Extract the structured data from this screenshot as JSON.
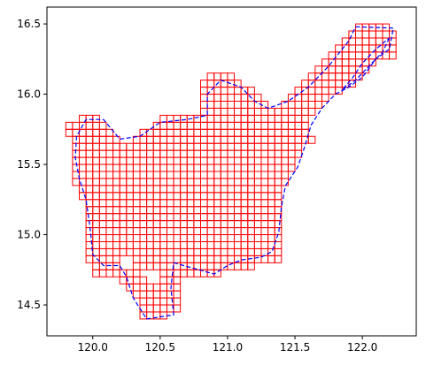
{
  "chart_data": {
    "type": "map",
    "title": "",
    "xlabel": "",
    "ylabel": "",
    "xlim": [
      119.66,
      122.4
    ],
    "ylim": [
      14.28,
      16.62
    ],
    "grid": false,
    "x_ticks": [
      120.0,
      120.5,
      121.0,
      121.5,
      122.0
    ],
    "y_ticks": [
      14.5,
      15.0,
      15.5,
      16.0,
      16.5
    ],
    "x_tick_labels": [
      "120.0",
      "120.5",
      "121.0",
      "121.5",
      "122.0"
    ],
    "y_tick_labels": [
      "14.5",
      "15.0",
      "15.5",
      "16.0",
      "16.5"
    ],
    "cell_size_deg": 0.05,
    "colors": {
      "grid_cells": "#ff0000",
      "boundary": "#0000ff"
    },
    "cell_rows": [
      {
        "lat": 16.475,
        "spans": [
          [
            121.95,
            122.2
          ]
        ]
      },
      {
        "lat": 16.425,
        "spans": [
          [
            121.9,
            122.25
          ]
        ]
      },
      {
        "lat": 16.375,
        "spans": [
          [
            121.85,
            122.25
          ]
        ]
      },
      {
        "lat": 16.325,
        "spans": [
          [
            121.8,
            122.25
          ]
        ]
      },
      {
        "lat": 16.275,
        "spans": [
          [
            121.75,
            122.25
          ]
        ]
      },
      {
        "lat": 16.225,
        "spans": [
          [
            121.7,
            122.1
          ]
        ]
      },
      {
        "lat": 16.175,
        "spans": [
          [
            121.65,
            122.05
          ]
        ]
      },
      {
        "lat": 16.125,
        "spans": [
          [
            120.85,
            121.05
          ],
          [
            121.6,
            122.0
          ]
        ]
      },
      {
        "lat": 16.075,
        "spans": [
          [
            120.8,
            121.1
          ],
          [
            121.55,
            121.95
          ]
        ]
      },
      {
        "lat": 16.025,
        "spans": [
          [
            120.8,
            121.2
          ],
          [
            121.5,
            121.85
          ]
        ]
      },
      {
        "lat": 15.975,
        "spans": [
          [
            120.8,
            121.25
          ],
          [
            121.45,
            121.75
          ]
        ]
      },
      {
        "lat": 15.925,
        "spans": [
          [
            120.8,
            121.3
          ],
          [
            121.4,
            121.7
          ]
        ]
      },
      {
        "lat": 15.875,
        "spans": [
          [
            120.8,
            121.65
          ]
        ]
      },
      {
        "lat": 15.825,
        "spans": [
          [
            119.9,
            120.05
          ],
          [
            120.5,
            121.6
          ]
        ]
      },
      {
        "lat": 15.775,
        "spans": [
          [
            119.8,
            120.1
          ],
          [
            120.45,
            121.6
          ]
        ]
      },
      {
        "lat": 15.725,
        "spans": [
          [
            119.8,
            120.15
          ],
          [
            120.35,
            121.6
          ]
        ]
      },
      {
        "lat": 15.675,
        "spans": [
          [
            119.85,
            120.2
          ],
          [
            120.3,
            121.65
          ]
        ]
      },
      {
        "lat": 15.625,
        "spans": [
          [
            119.85,
            120.3
          ],
          [
            120.3,
            121.55
          ]
        ]
      },
      {
        "lat": 15.575,
        "spans": [
          [
            119.85,
            121.55
          ]
        ]
      },
      {
        "lat": 15.525,
        "spans": [
          [
            119.85,
            121.5
          ]
        ]
      },
      {
        "lat": 15.475,
        "spans": [
          [
            119.85,
            121.5
          ]
        ]
      },
      {
        "lat": 15.425,
        "spans": [
          [
            119.85,
            121.45
          ]
        ]
      },
      {
        "lat": 15.375,
        "spans": [
          [
            119.85,
            121.45
          ]
        ]
      },
      {
        "lat": 15.325,
        "spans": [
          [
            119.9,
            121.4
          ]
        ]
      },
      {
        "lat": 15.275,
        "spans": [
          [
            119.9,
            121.4
          ]
        ]
      },
      {
        "lat": 15.225,
        "spans": [
          [
            119.95,
            121.4
          ]
        ]
      },
      {
        "lat": 15.175,
        "spans": [
          [
            119.95,
            121.4
          ]
        ]
      },
      {
        "lat": 15.125,
        "spans": [
          [
            119.95,
            121.4
          ]
        ]
      },
      {
        "lat": 15.075,
        "spans": [
          [
            119.95,
            121.4
          ]
        ]
      },
      {
        "lat": 15.025,
        "spans": [
          [
            119.95,
            121.4
          ]
        ]
      },
      {
        "lat": 14.975,
        "spans": [
          [
            119.95,
            121.4
          ]
        ]
      },
      {
        "lat": 14.925,
        "spans": [
          [
            119.95,
            121.4
          ]
        ]
      },
      {
        "lat": 14.875,
        "spans": [
          [
            119.95,
            121.4
          ]
        ]
      },
      {
        "lat": 14.825,
        "spans": [
          [
            119.95,
            120.2
          ],
          [
            120.3,
            121.4
          ]
        ]
      },
      {
        "lat": 14.775,
        "spans": [
          [
            120.0,
            120.2
          ],
          [
            120.3,
            121.2
          ]
        ]
      },
      {
        "lat": 14.725,
        "spans": [
          [
            120.0,
            120.35
          ],
          [
            120.5,
            120.95
          ]
        ]
      },
      {
        "lat": 14.675,
        "spans": [
          [
            120.2,
            120.4
          ],
          [
            120.5,
            120.65
          ]
        ]
      },
      {
        "lat": 14.625,
        "spans": [
          [
            120.25,
            120.65
          ]
        ]
      },
      {
        "lat": 14.575,
        "spans": [
          [
            120.3,
            120.65
          ]
        ]
      },
      {
        "lat": 14.525,
        "spans": [
          [
            120.35,
            120.65
          ]
        ]
      },
      {
        "lat": 14.475,
        "spans": [
          [
            120.35,
            120.65
          ]
        ]
      },
      {
        "lat": 14.425,
        "spans": [
          [
            120.35,
            120.55
          ]
        ]
      }
    ],
    "boundary_outline": [
      [
        121.95,
        16.48
      ],
      [
        122.23,
        16.47
      ],
      [
        122.2,
        16.32
      ],
      [
        122.1,
        16.25
      ],
      [
        122.0,
        16.12
      ],
      [
        121.9,
        16.05
      ],
      [
        121.8,
        16.0
      ],
      [
        121.7,
        15.9
      ],
      [
        121.62,
        15.78
      ],
      [
        121.57,
        15.62
      ],
      [
        121.52,
        15.48
      ],
      [
        121.43,
        15.35
      ],
      [
        121.4,
        15.2
      ],
      [
        121.38,
        15.02
      ],
      [
        121.33,
        14.88
      ],
      [
        121.25,
        14.84
      ],
      [
        121.1,
        14.82
      ],
      [
        121.0,
        14.78
      ],
      [
        120.9,
        14.72
      ],
      [
        120.75,
        14.76
      ],
      [
        120.6,
        14.8
      ],
      [
        120.58,
        14.62
      ],
      [
        120.6,
        14.43
      ],
      [
        120.4,
        14.4
      ],
      [
        120.3,
        14.55
      ],
      [
        120.25,
        14.7
      ],
      [
        120.2,
        14.78
      ],
      [
        120.08,
        14.78
      ],
      [
        120.0,
        14.86
      ],
      [
        119.98,
        15.05
      ],
      [
        119.95,
        15.25
      ],
      [
        119.9,
        15.4
      ],
      [
        119.87,
        15.55
      ],
      [
        119.88,
        15.7
      ],
      [
        119.95,
        15.82
      ],
      [
        120.08,
        15.82
      ],
      [
        120.2,
        15.68
      ],
      [
        120.35,
        15.7
      ],
      [
        120.5,
        15.8
      ],
      [
        120.7,
        15.82
      ],
      [
        120.85,
        15.85
      ],
      [
        120.85,
        16.0
      ],
      [
        120.95,
        16.1
      ],
      [
        121.1,
        16.05
      ],
      [
        121.2,
        15.95
      ],
      [
        121.3,
        15.9
      ],
      [
        121.45,
        15.95
      ],
      [
        121.6,
        16.05
      ],
      [
        121.75,
        16.2
      ],
      [
        121.9,
        16.38
      ],
      [
        121.95,
        16.48
      ]
    ],
    "boundary_secondary": [
      [
        122.2,
        16.4
      ],
      [
        122.15,
        16.3
      ],
      [
        122.05,
        16.2
      ],
      [
        121.95,
        16.1
      ],
      [
        121.85,
        16.03
      ],
      [
        121.93,
        16.12
      ],
      [
        122.0,
        16.22
      ],
      [
        122.1,
        16.32
      ],
      [
        122.2,
        16.4
      ]
    ]
  }
}
